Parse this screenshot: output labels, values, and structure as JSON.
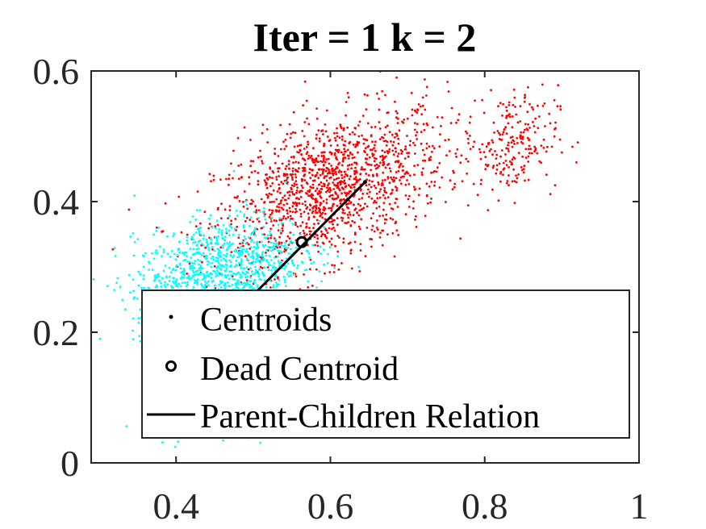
{
  "chart_data": {
    "type": "scatter",
    "title": "Iter = 1  k = 2",
    "xlabel": "",
    "ylabel": "",
    "xlim": [
      0.29,
      1.0
    ],
    "ylim": [
      0,
      0.6
    ],
    "xticks": [
      0.4,
      0.6,
      0.8,
      1.0
    ],
    "xtick_labels": [
      "0.4",
      "0.6",
      "0.8",
      "1"
    ],
    "yticks": [
      0,
      0.2,
      0.4,
      0.6
    ],
    "ytick_labels": [
      "0",
      "0.2",
      "0.4",
      "0.6"
    ],
    "grid": false,
    "legend_position": "bottom-right",
    "series": [
      {
        "name": "Centroids",
        "kind": "centroid-points",
        "color": "#000000"
      },
      {
        "name": "Dead Centroid",
        "kind": "open-circle",
        "color": "#000000",
        "x": [
          0.563
        ],
        "y": [
          0.338
        ]
      },
      {
        "name": "Parent-Children Relation",
        "kind": "line",
        "color": "#000000",
        "x": [
          0.444,
          0.645
        ],
        "y": [
          0.19,
          0.43
        ]
      }
    ],
    "clusters": [
      {
        "color": "#ff0000",
        "center": [
          0.6,
          0.42
        ],
        "spread": [
          0.075,
          0.06
        ],
        "count": 1400,
        "correlation": 0.45
      },
      {
        "color": "#ff0000",
        "center": [
          0.835,
          0.49
        ],
        "spread": [
          0.03,
          0.04
        ],
        "count": 220,
        "correlation": 0.1
      },
      {
        "color": "#00ffff",
        "center": [
          0.455,
          0.29
        ],
        "spread": [
          0.055,
          0.045
        ],
        "count": 1100,
        "correlation": 0.35
      },
      {
        "color": "#00ffff",
        "center": [
          0.45,
          0.1
        ],
        "spread": [
          0.04,
          0.05
        ],
        "count": 90,
        "correlation": 0.0
      }
    ]
  }
}
